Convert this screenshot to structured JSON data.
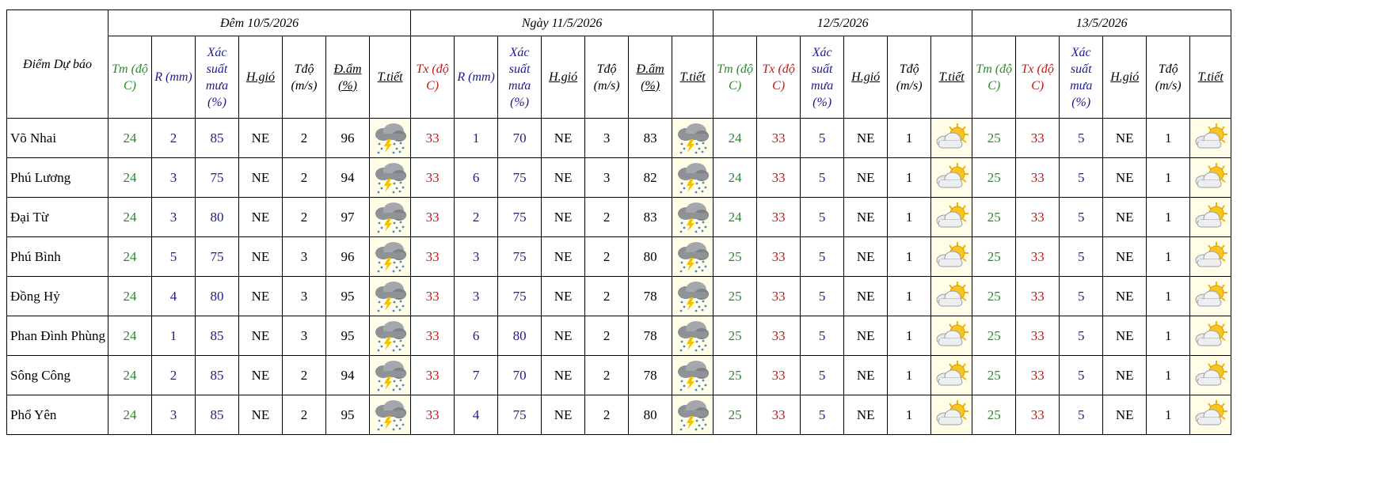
{
  "table": {
    "header": {
      "corner": "Điểm Dự báo",
      "groups": [
        {
          "title": "Đêm 10/5/2026",
          "columns": [
            {
              "label": "Tm (độ C)",
              "color": "#2a8a2a"
            },
            {
              "label": "R (mm)",
              "color": "#1c1c8a"
            },
            {
              "label": "Xác suất mưa (%)",
              "color": "#1c1c8a"
            },
            {
              "label": "H.gió",
              "color": "#000000",
              "underline": true
            },
            {
              "label": "Tđộ (m/s)",
              "color": "#000000"
            },
            {
              "label": "Đ.ẩm (%)",
              "color": "#000000",
              "underline": true
            },
            {
              "label": "T.tiết",
              "color": "#000000",
              "underline": true
            }
          ]
        },
        {
          "title": "Ngày 11/5/2026",
          "columns": [
            {
              "label": "Tx (độ C)",
              "color": "#c01818"
            },
            {
              "label": "R (mm)",
              "color": "#1c1c8a"
            },
            {
              "label": "Xác suất mưa (%)",
              "color": "#1c1c8a"
            },
            {
              "label": "H.gió",
              "color": "#000000",
              "underline": true
            },
            {
              "label": "Tđộ (m/s)",
              "color": "#000000"
            },
            {
              "label": "Đ.ẩm (%)",
              "color": "#000000",
              "underline": true
            },
            {
              "label": "T.tiết",
              "color": "#000000",
              "underline": true
            }
          ]
        },
        {
          "title": "12/5/2026",
          "columns": [
            {
              "label": "Tm (độ C)",
              "color": "#2a8a2a"
            },
            {
              "label": "Tx (độ C)",
              "color": "#c01818"
            },
            {
              "label": "Xác suất mưa (%)",
              "color": "#1c1c8a"
            },
            {
              "label": "H.gió",
              "color": "#000000",
              "underline": true
            },
            {
              "label": "Tđộ (m/s)",
              "color": "#000000"
            },
            {
              "label": "T.tiết",
              "color": "#000000",
              "underline": true
            }
          ]
        },
        {
          "title": "13/5/2026",
          "columns": [
            {
              "label": "Tm (độ C)",
              "color": "#2a8a2a"
            },
            {
              "label": "Tx (độ C)",
              "color": "#c01818"
            },
            {
              "label": "Xác suất mưa (%)",
              "color": "#1c1c8a"
            },
            {
              "label": "H.gió",
              "color": "#000000",
              "underline": true
            },
            {
              "label": "Tđộ (m/s)",
              "color": "#000000"
            },
            {
              "label": "T.tiết",
              "color": "#000000",
              "underline": true
            }
          ]
        }
      ]
    },
    "rows": [
      {
        "name": "Võ Nhai",
        "groups": [
          [
            24,
            2,
            85,
            "NE",
            2,
            96
          ],
          [
            33,
            1,
            70,
            "NE",
            3,
            83
          ],
          [
            24,
            33,
            5,
            "NE",
            1
          ],
          [
            25,
            33,
            5,
            "NE",
            1
          ]
        ]
      },
      {
        "name": "Phú Lương",
        "groups": [
          [
            24,
            3,
            75,
            "NE",
            2,
            94
          ],
          [
            33,
            6,
            75,
            "NE",
            3,
            82
          ],
          [
            24,
            33,
            5,
            "NE",
            1
          ],
          [
            25,
            33,
            5,
            "NE",
            1
          ]
        ]
      },
      {
        "name": "Đại Từ",
        "groups": [
          [
            24,
            3,
            80,
            "NE",
            2,
            97
          ],
          [
            33,
            2,
            75,
            "NE",
            2,
            83
          ],
          [
            24,
            33,
            5,
            "NE",
            1
          ],
          [
            25,
            33,
            5,
            "NE",
            1
          ]
        ]
      },
      {
        "name": "Phú Bình",
        "groups": [
          [
            24,
            5,
            75,
            "NE",
            3,
            96
          ],
          [
            33,
            3,
            75,
            "NE",
            2,
            80
          ],
          [
            25,
            33,
            5,
            "NE",
            1
          ],
          [
            25,
            33,
            5,
            "NE",
            1
          ]
        ]
      },
      {
        "name": "Đồng Hỷ",
        "groups": [
          [
            24,
            4,
            80,
            "NE",
            3,
            95
          ],
          [
            33,
            3,
            75,
            "NE",
            2,
            78
          ],
          [
            25,
            33,
            5,
            "NE",
            1
          ],
          [
            25,
            33,
            5,
            "NE",
            1
          ]
        ]
      },
      {
        "name": "Phan Đình Phùng",
        "groups": [
          [
            24,
            1,
            85,
            "NE",
            3,
            95
          ],
          [
            33,
            6,
            80,
            "NE",
            2,
            78
          ],
          [
            25,
            33,
            5,
            "NE",
            1
          ],
          [
            25,
            33,
            5,
            "NE",
            1
          ]
        ]
      },
      {
        "name": "Sông Công",
        "groups": [
          [
            24,
            2,
            85,
            "NE",
            2,
            94
          ],
          [
            33,
            7,
            70,
            "NE",
            2,
            78
          ],
          [
            25,
            33,
            5,
            "NE",
            1
          ],
          [
            25,
            33,
            5,
            "NE",
            1
          ]
        ]
      },
      {
        "name": "Phổ Yên",
        "groups": [
          [
            24,
            3,
            85,
            "NE",
            2,
            95
          ],
          [
            33,
            4,
            75,
            "NE",
            2,
            80
          ],
          [
            25,
            33,
            5,
            "NE",
            1
          ],
          [
            25,
            33,
            5,
            "NE",
            1
          ]
        ]
      }
    ]
  }
}
